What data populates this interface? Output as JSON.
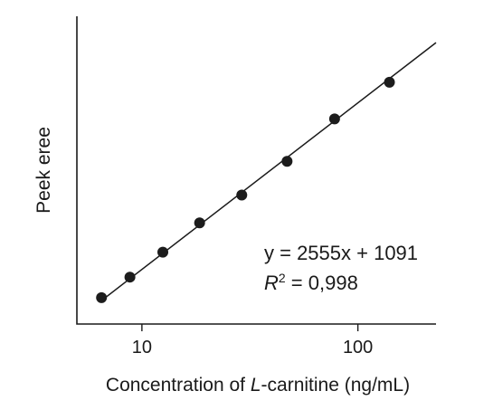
{
  "chart_data": {
    "type": "scatter",
    "title": "",
    "xlabel_parts": [
      "Concentration of ",
      "L",
      "-carnitine (ng/mL)"
    ],
    "ylabel": "Peek eree",
    "x_scale": "log",
    "xlim": [
      5,
      230
    ],
    "ylim": [
      2000,
      12500
    ],
    "x_ticks": [
      10,
      100
    ],
    "x_tick_labels": [
      "10",
      "100"
    ],
    "grid": false,
    "legend": "none",
    "point_color": "#1c1c1c",
    "series": [
      {
        "x": [
          6.5,
          8.8,
          12.5,
          18.5,
          29,
          47,
          78,
          140
        ],
        "y": [
          2900,
          3600,
          4450,
          5450,
          6400,
          7550,
          9000,
          10250
        ]
      }
    ],
    "fit_line": {
      "x": [
        6.5,
        230
      ],
      "y": [
        2800,
        11600
      ]
    },
    "annotations": {
      "equation": "y = 2555x + 1091",
      "r2_symbol": "R",
      "r2_power": "2",
      "r2_value": " = 0,998"
    }
  }
}
